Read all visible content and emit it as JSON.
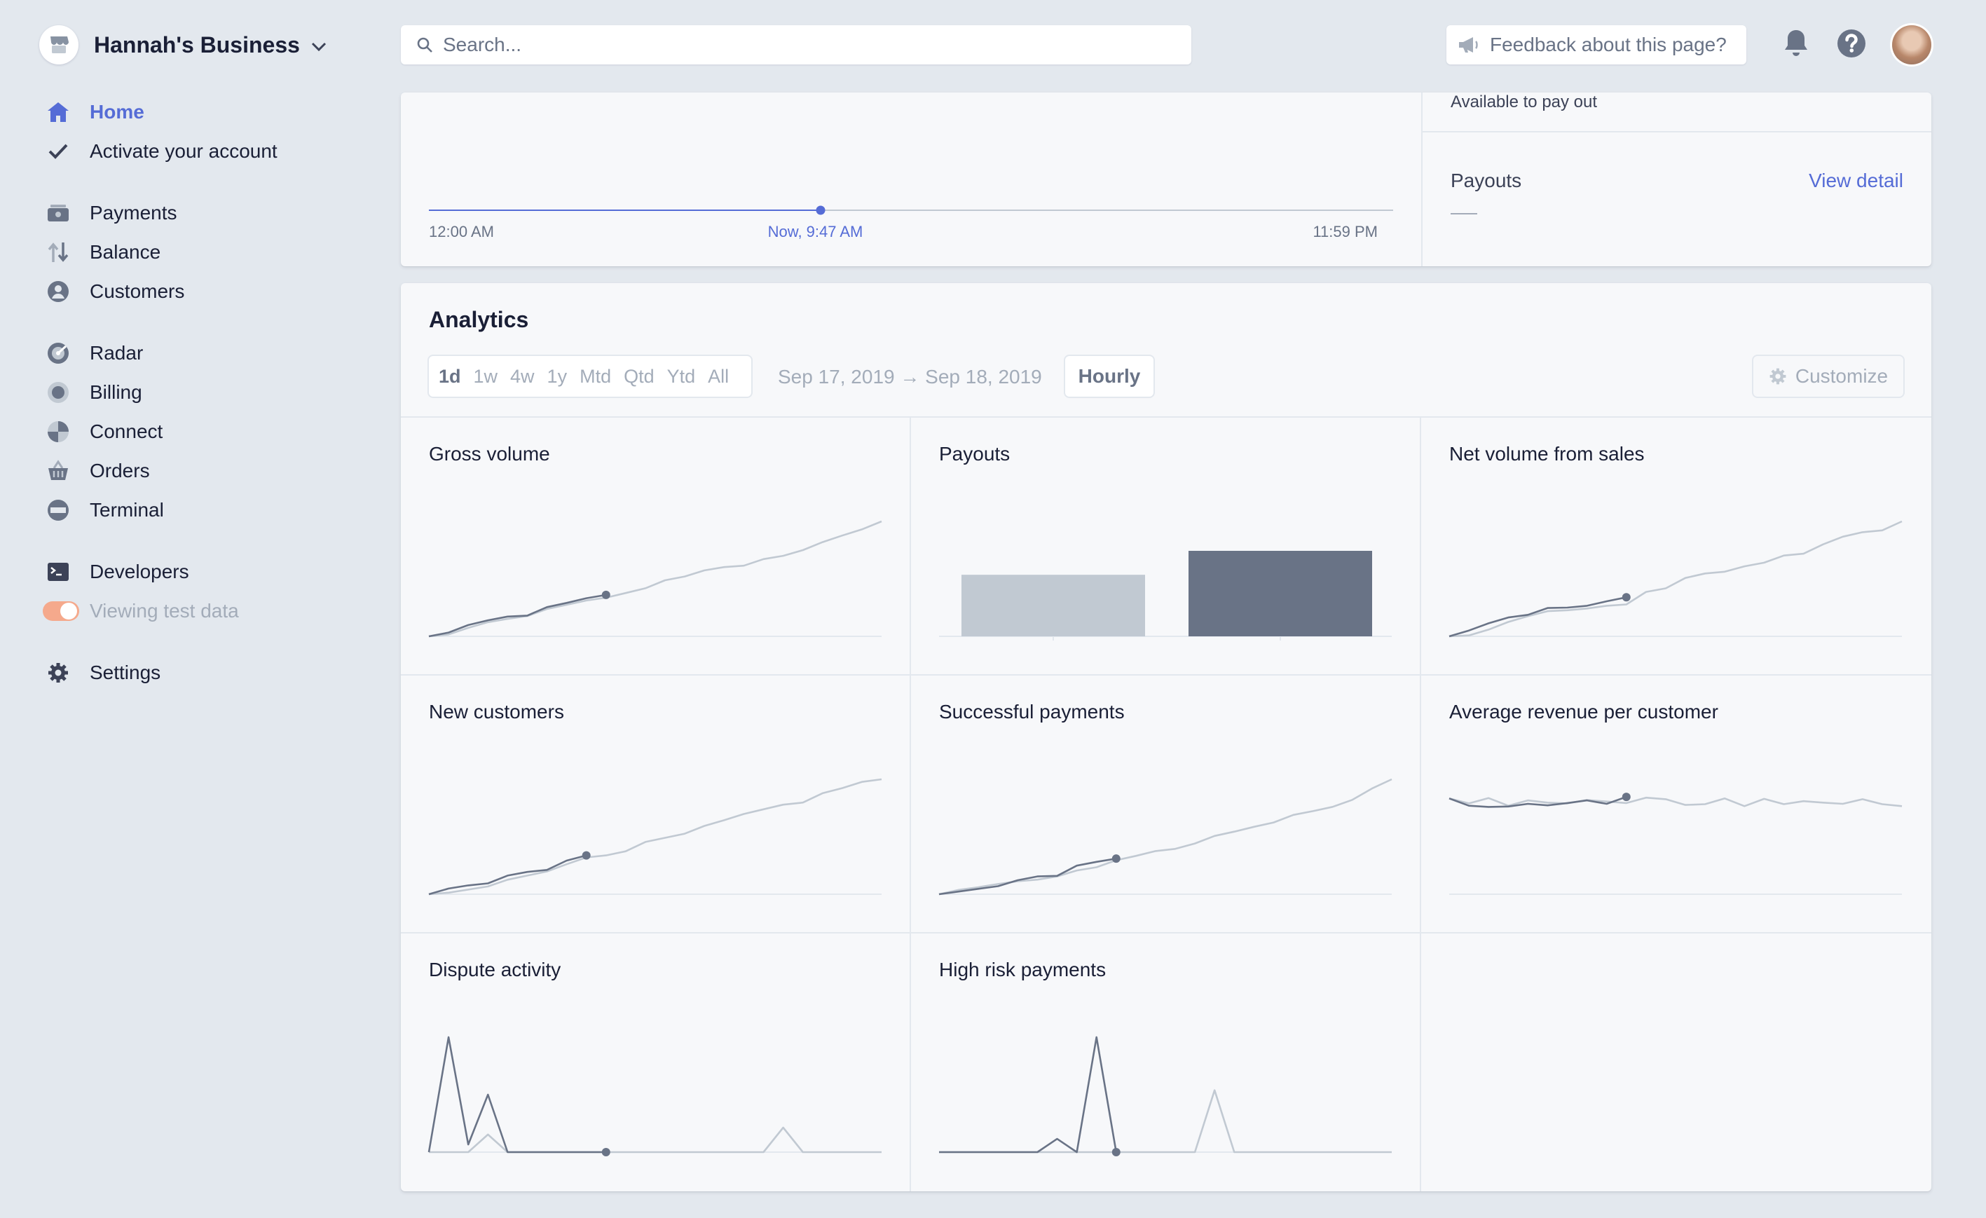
{
  "account": {
    "business_name": "Hannah's Business"
  },
  "sidebar": {
    "items": [
      {
        "label": "Home",
        "icon": "home-icon"
      },
      {
        "label": "Activate your account",
        "icon": "checkmark-icon"
      },
      {
        "label": "Payments",
        "icon": "payments-icon"
      },
      {
        "label": "Balance",
        "icon": "balance-icon"
      },
      {
        "label": "Customers",
        "icon": "customers-icon"
      },
      {
        "label": "Radar",
        "icon": "radar-icon"
      },
      {
        "label": "Billing",
        "icon": "billing-icon"
      },
      {
        "label": "Connect",
        "icon": "connect-icon"
      },
      {
        "label": "Orders",
        "icon": "orders-icon"
      },
      {
        "label": "Terminal",
        "icon": "terminal-icon"
      },
      {
        "label": "Developers",
        "icon": "developers-icon"
      },
      {
        "label": "Viewing test data",
        "icon": "toggle-icon"
      },
      {
        "label": "Settings",
        "icon": "gear-icon"
      }
    ],
    "test_mode_toggle_on": true
  },
  "topbar": {
    "search_placeholder": "Search...",
    "feedback_label": "Feedback about this page?"
  },
  "today": {
    "start_label": "12:00 AM",
    "now_label": "Now, 9:47 AM",
    "end_label": "11:59 PM",
    "day_progress": 0.406,
    "available_label": "Available to pay out",
    "payouts_title": "Payouts",
    "view_detail": "View detail",
    "payouts_value": "—"
  },
  "analytics": {
    "title": "Analytics",
    "ranges": [
      "1d",
      "1w",
      "4w",
      "1y",
      "Mtd",
      "Qtd",
      "Ytd",
      "All"
    ],
    "selected_range": "1d",
    "date_range": "Sep 17, 2019 → Sep 18, 2019",
    "interval": "Hourly",
    "customize": "Customize",
    "tiles": [
      {
        "title": "Gross volume"
      },
      {
        "title": "Payouts"
      },
      {
        "title": "Net volume from sales"
      },
      {
        "title": "New customers"
      },
      {
        "title": "Successful payments"
      },
      {
        "title": "Average revenue per customer"
      },
      {
        "title": "Dispute activity"
      },
      {
        "title": "High risk payments"
      }
    ]
  },
  "colors": {
    "accent": "#556cd6",
    "current_series": "#697386",
    "previous_series": "#c1c9d2",
    "toggle": "#f5a98c"
  },
  "chart_data": [
    {
      "type": "line",
      "title": "Gross volume",
      "series": [
        {
          "values": [
            0,
            0.8,
            2.4,
            3.4,
            4.2,
            4.4,
            6.2,
            7.1,
            8.1,
            8.8
          ]
        },
        {
          "values": [
            0,
            0.4,
            1.8,
            3.0,
            3.7,
            4.3,
            5.8,
            6.7,
            7.6,
            8.2,
            9.2,
            10.2,
            11.9,
            12.7,
            14.0,
            14.7,
            15.0,
            16.4,
            17.1,
            18.3,
            20.0,
            21.4,
            22.7,
            24.4
          ]
        }
      ],
      "ylim": [
        0,
        24.4
      ]
    },
    {
      "type": "bar",
      "title": "Payouts",
      "categories": [
        "previous",
        "current"
      ],
      "values": [
        7.2,
        10
      ]
    },
    {
      "type": "line",
      "title": "Net volume from sales",
      "series": [
        {
          "values": [
            0,
            1.3,
            2.9,
            4.2,
            4.8,
            6.3,
            6.4,
            6.8,
            7.8,
            8.7
          ]
        },
        {
          "values": [
            0,
            0.2,
            1.5,
            3.2,
            4.5,
            5.6,
            5.8,
            6.2,
            6.8,
            7.1,
            9.9,
            10.7,
            13.0,
            14.0,
            14.4,
            15.6,
            16.4,
            18.0,
            18.4,
            20.5,
            22.2,
            23.2,
            23.6,
            25.6
          ]
        }
      ],
      "ylim": [
        0,
        25.6
      ]
    },
    {
      "type": "line",
      "title": "New customers",
      "series": [
        {
          "values": [
            0,
            1.1,
            1.7,
            2.1,
            3.6,
            4.3,
            4.7,
            6.5,
            7.5
          ]
        },
        {
          "values": [
            0,
            0.3,
            0.9,
            1.5,
            2.8,
            3.6,
            4.4,
            5.8,
            7.1,
            7.5,
            8.3,
            10.1,
            10.9,
            11.7,
            13.2,
            14.3,
            15.5,
            16.4,
            17.3,
            17.7,
            19.5,
            20.5,
            21.7,
            22.2
          ]
        }
      ],
      "ylim": [
        0,
        22.2
      ]
    },
    {
      "type": "line",
      "title": "Successful payments",
      "series": [
        {
          "values": [
            0,
            0.5,
            1.0,
            1.5,
            2.6,
            3.3,
            3.4,
            5.3,
            6.0,
            6.6
          ]
        },
        {
          "values": [
            0,
            0.8,
            1.3,
            1.9,
            2.4,
            2.7,
            3.3,
            4.4,
            5.0,
            6.3,
            7.1,
            8.0,
            8.4,
            9.4,
            10.8,
            11.6,
            12.5,
            13.3,
            14.7,
            15.4,
            16.2,
            17.5,
            19.6,
            21.3
          ]
        }
      ],
      "ylim": [
        0,
        21.3
      ]
    },
    {
      "type": "line",
      "title": "Average revenue per customer",
      "series": [
        {
          "values": [
            100,
            98.1,
            97.8,
            97.9,
            98.6,
            98.2,
            98.8,
            99.5,
            98.6,
            100.4
          ]
        },
        {
          "values": [
            100,
            98.7,
            100.1,
            98.1,
            99.5,
            98.9,
            98.7,
            99.6,
            99.2,
            98.8,
            100.2,
            99.8,
            98.3,
            98.5,
            100.0,
            98.0,
            99.9,
            98.5,
            99.3,
            98.9,
            98.6,
            99.8,
            98.5,
            98.0
          ]
        }
      ],
      "ylim": [
        75,
        105
      ]
    },
    {
      "type": "line",
      "title": "Dispute activity",
      "series": [
        {
          "values": [
            0,
            15,
            1,
            7.5,
            0,
            0,
            0,
            0,
            0,
            0
          ]
        },
        {
          "values": [
            0,
            0,
            0,
            2.3,
            0,
            0,
            0,
            0,
            0,
            0,
            0,
            0,
            0,
            0,
            0,
            0,
            0,
            0,
            3.2,
            0,
            0,
            0,
            0,
            0
          ]
        }
      ],
      "ylim": [
        0,
        15
      ]
    },
    {
      "type": "line",
      "title": "High risk payments",
      "series": [
        {
          "values": [
            0,
            0,
            0,
            0,
            0,
            0,
            1.5,
            0,
            13,
            0
          ]
        },
        {
          "values": [
            0,
            0,
            0,
            0,
            0,
            0,
            0,
            0,
            0,
            0,
            0,
            0,
            0,
            0,
            7,
            0,
            0,
            0,
            0,
            0,
            0,
            0,
            0,
            0
          ]
        }
      ],
      "ylim": [
        0,
        13
      ]
    }
  ]
}
